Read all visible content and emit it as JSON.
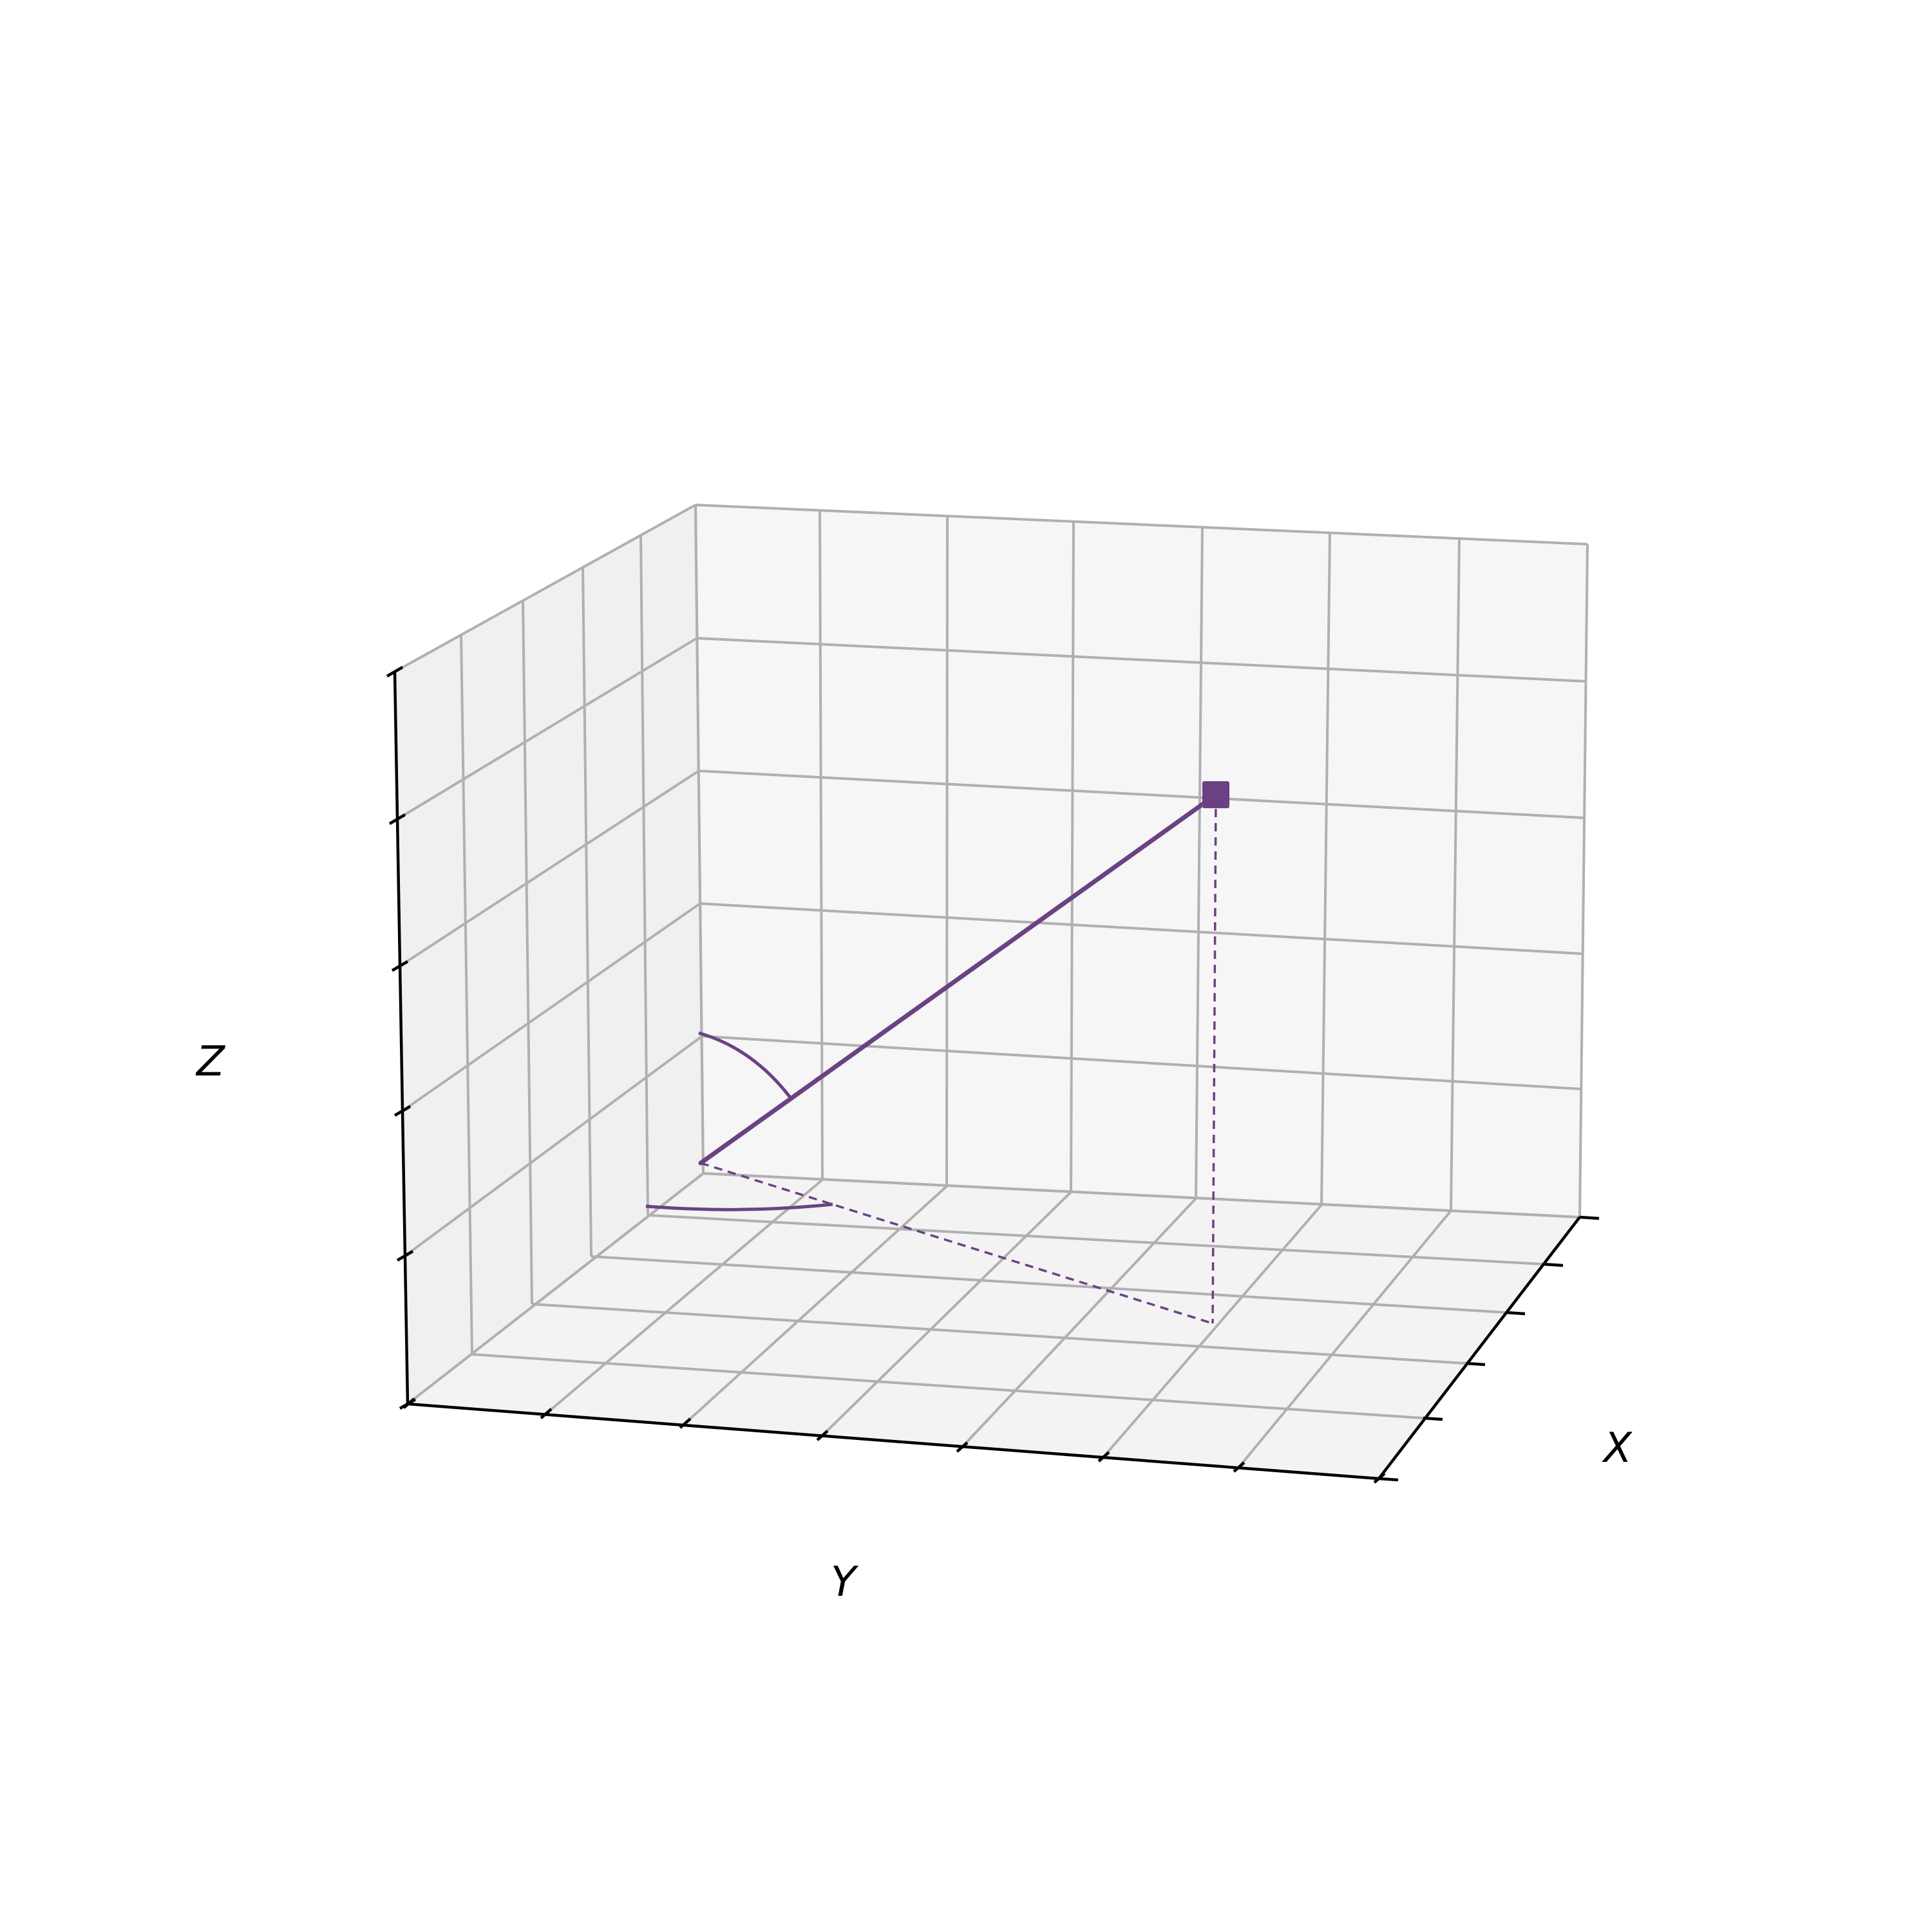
{
  "axes": {
    "x_label": "X",
    "y_label": "Y",
    "z_label": "Z"
  },
  "colors": {
    "vector": "#6b4184",
    "grid": "#b0b0b0",
    "axis": "#000000",
    "pane_left": "#f0f0f0",
    "pane_back": "#f6f6f6",
    "pane_floor": "#f3f3f3"
  },
  "diagram": {
    "type": "3d-vector-spherical-angles",
    "grid": true,
    "elements": [
      "vector-from-origin",
      "endpoint-marker-square",
      "vertical-projection-dashed",
      "floor-projection-dashed",
      "polar-angle-arc",
      "azimuth-angle-arc"
    ]
  }
}
